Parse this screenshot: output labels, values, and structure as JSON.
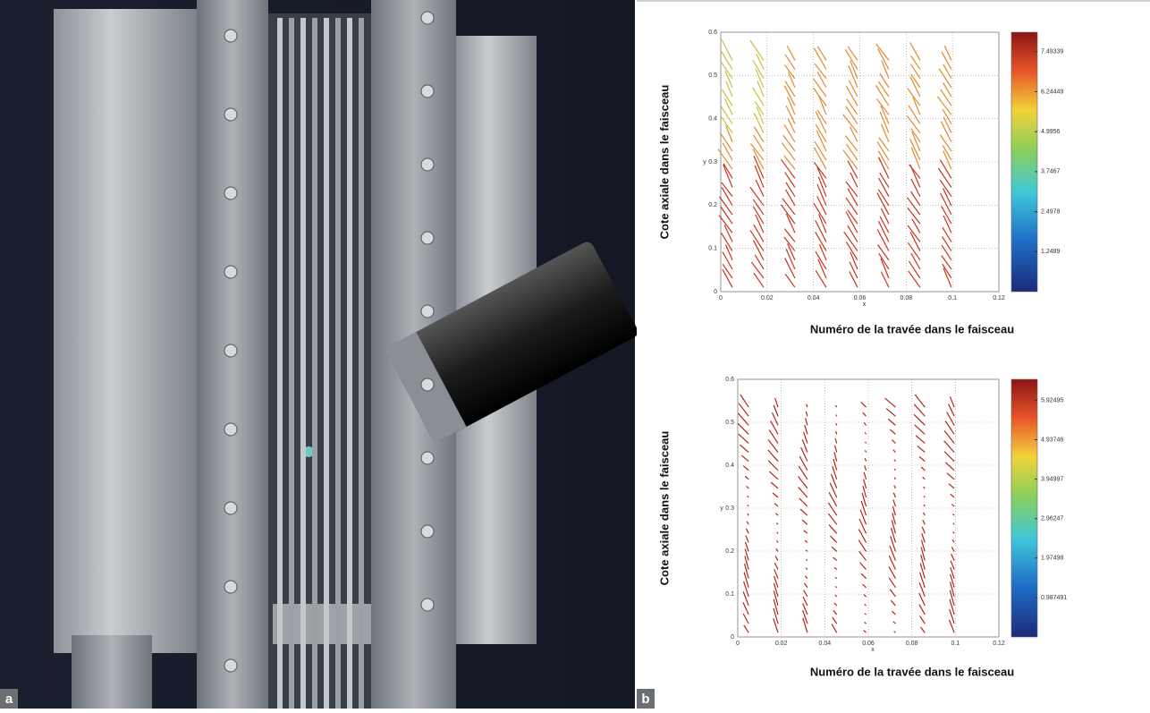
{
  "panels": [
    {
      "label": "a"
    },
    {
      "label": "b"
    }
  ],
  "plots": [
    {
      "ylabel": "Cote axiale dans le faisceau",
      "xlabel": "Numéro de la travée dans le faisceau",
      "x_letter": "x",
      "y_letter": "y",
      "xlim": [
        0,
        0.12
      ],
      "ylim": [
        0,
        0.6
      ],
      "xticks": [
        0,
        0.02,
        0.04,
        0.06,
        0.08,
        0.1,
        0.12
      ],
      "yticks": [
        0,
        0.1,
        0.2,
        0.3,
        0.4,
        0.5,
        0.6
      ],
      "colorbar_lim": [
        0,
        8.1
      ],
      "colorbar_ticks": [
        1.2489,
        2.4978,
        3.7467,
        4.9956,
        6.24449,
        7.49339
      ]
    },
    {
      "ylabel": "Cote axiale dans le faisceau",
      "xlabel": "Numéro de la travée dans le faisceau",
      "x_letter": "x",
      "y_letter": "y",
      "xlim": [
        0,
        0.12
      ],
      "ylim": [
        0,
        0.6
      ],
      "xticks": [
        0,
        0.02,
        0.04,
        0.06,
        0.08,
        0.1,
        0.12
      ],
      "yticks": [
        0,
        0.1,
        0.2,
        0.3,
        0.4,
        0.5,
        0.6
      ],
      "colorbar_lim": [
        0,
        6.45
      ],
      "colorbar_ticks": [
        0.987491,
        1.97498,
        2.96247,
        3.94997,
        4.93746,
        5.92495
      ]
    }
  ]
}
